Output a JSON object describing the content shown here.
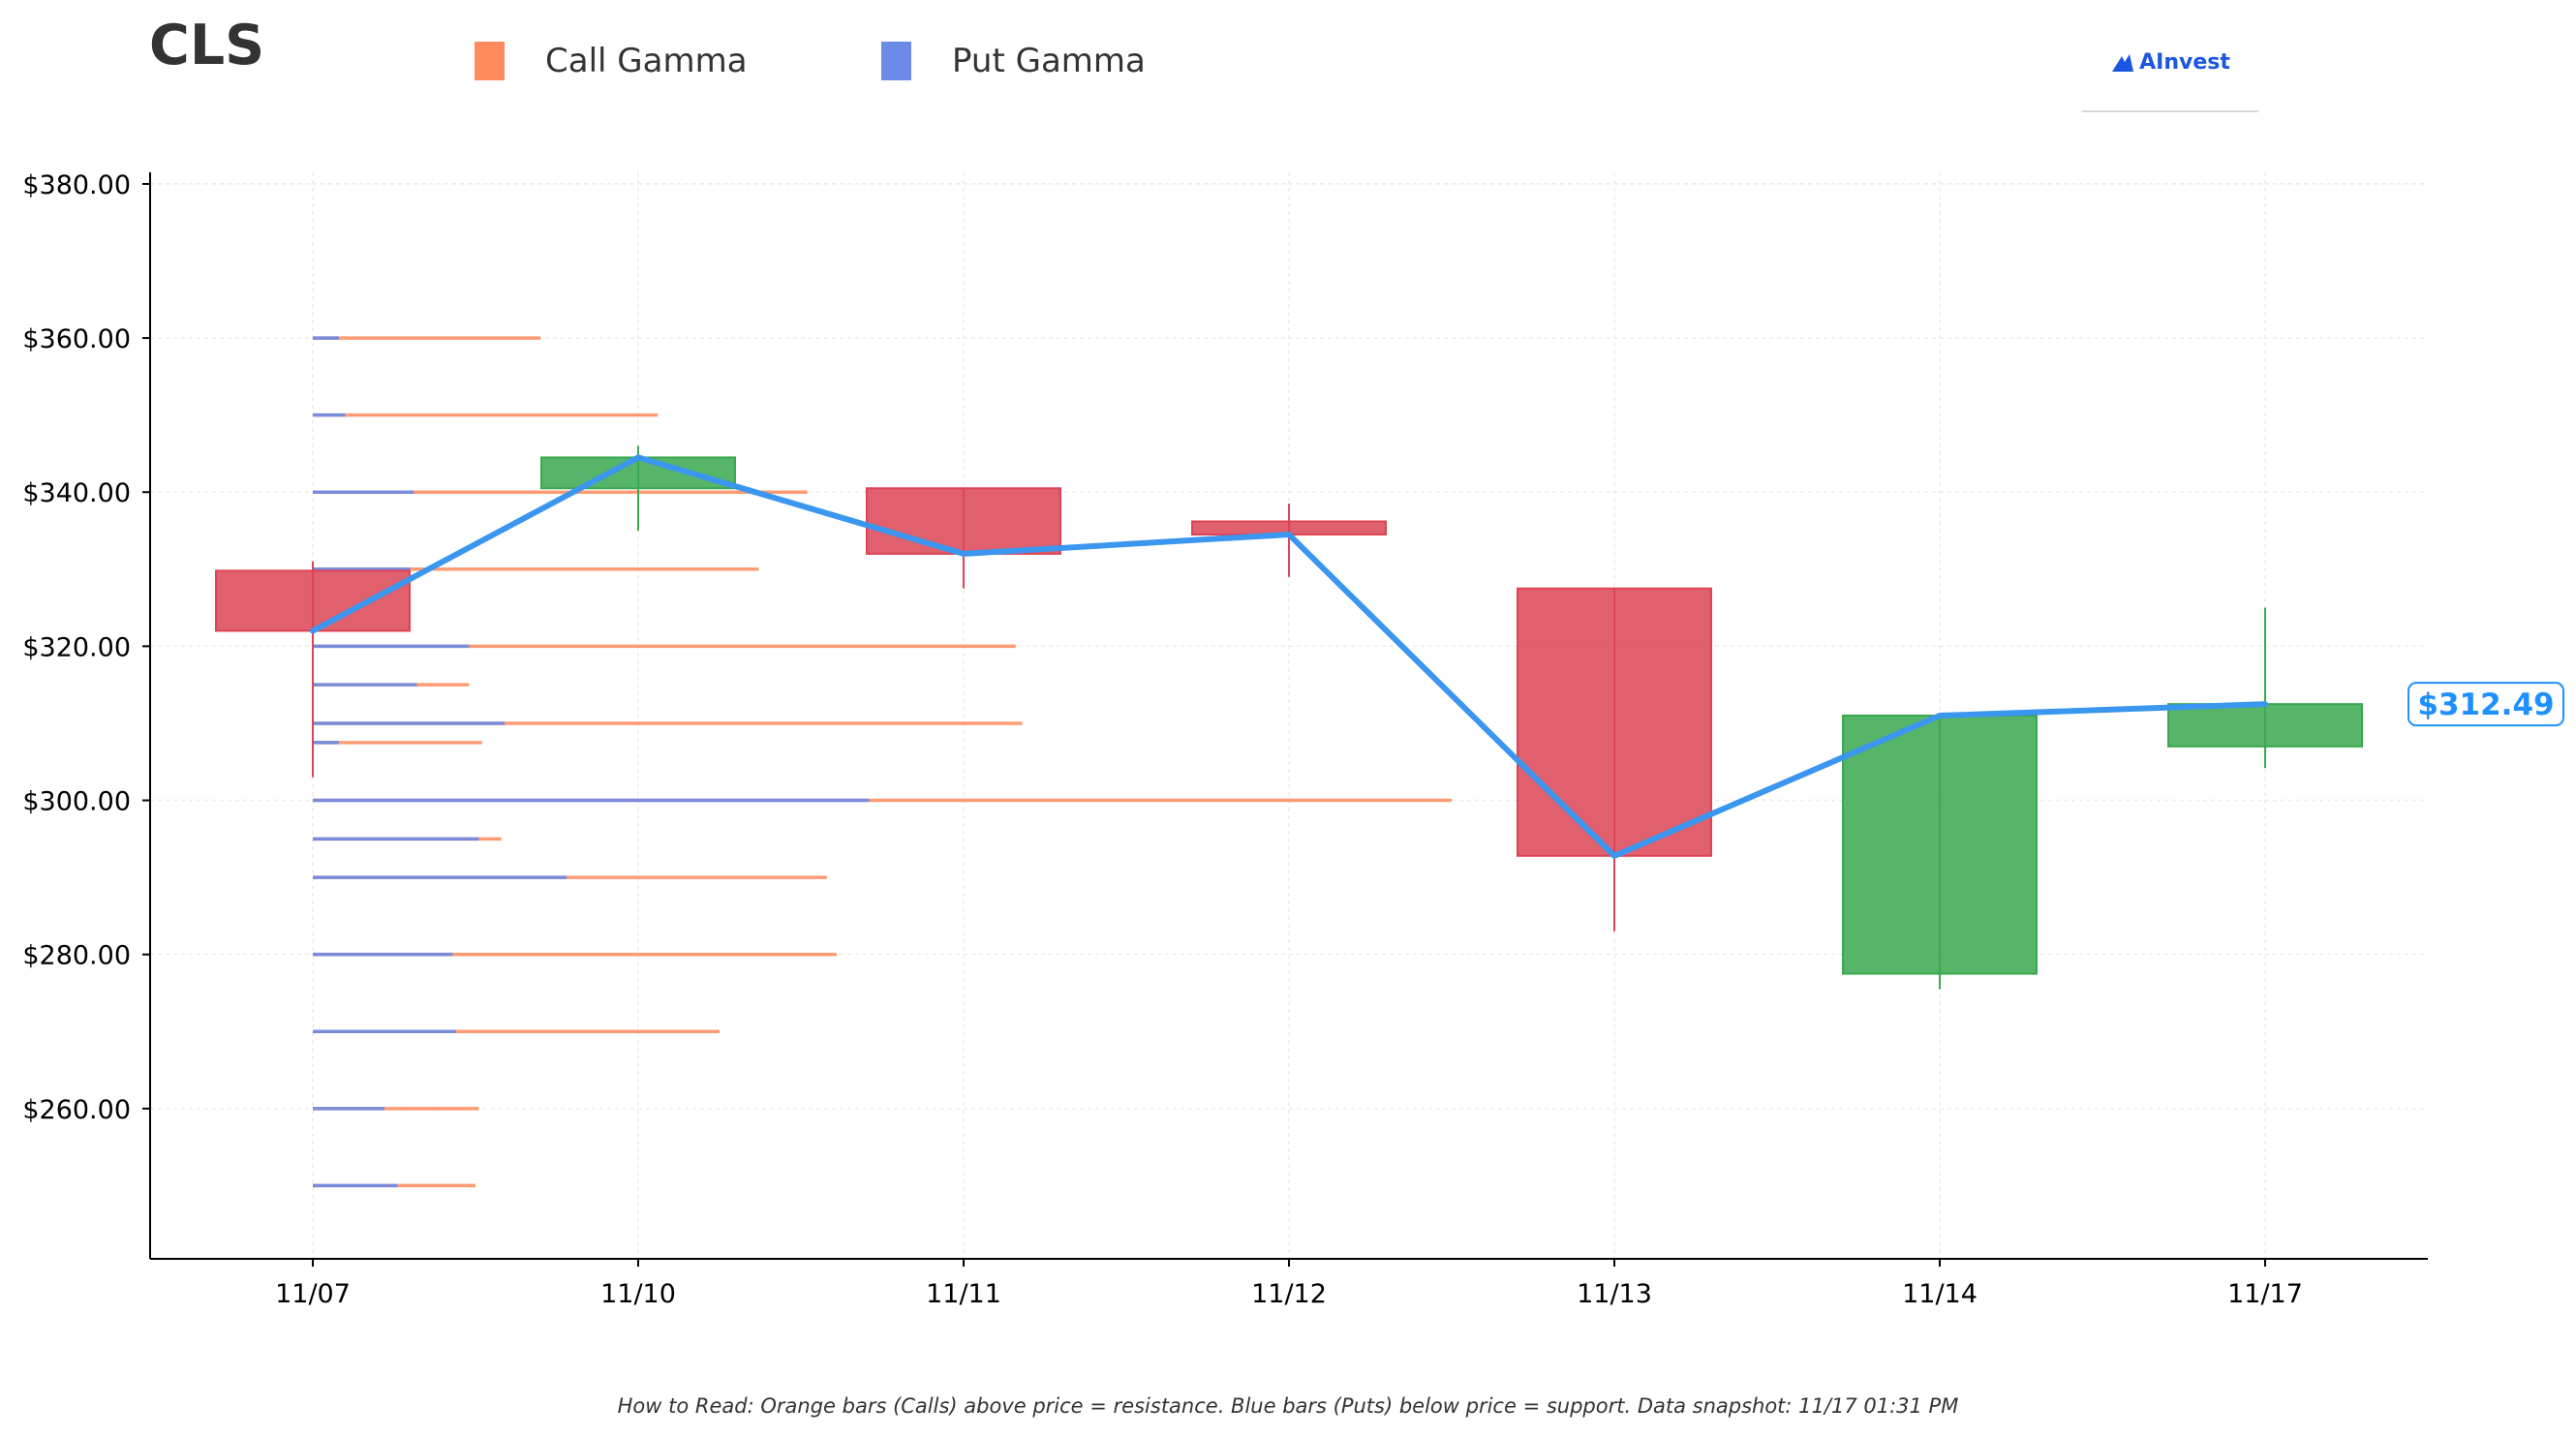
{
  "header": {
    "ticker": "CLS",
    "legend": [
      {
        "label": "Call Gamma",
        "color": "#ff8a5b"
      },
      {
        "label": "Put Gamma",
        "color": "#6c8ae8"
      }
    ],
    "brand": {
      "name": "AInvest",
      "icon": "ainvest-logo-icon"
    }
  },
  "footnote": "How to Read: Orange bars (Calls) above price = resistance. Blue bars (Puts) below price = support. Data snapshot: 11/17 01:31 PM",
  "chart_data": {
    "type": "candlestick",
    "title": "",
    "xlabel": "",
    "ylabel": "",
    "ylim": [
      240.5,
      381.5
    ],
    "grid": true,
    "y_ticks": [
      380,
      360,
      340,
      320,
      300,
      280,
      260
    ],
    "y_tick_labels": [
      "$380.00",
      "$360.00",
      "$340.00",
      "$320.00",
      "$300.00",
      "$280.00",
      "$260.00"
    ],
    "categories": [
      "11/07",
      "11/10",
      "11/11",
      "11/12",
      "11/13",
      "11/14",
      "11/17"
    ],
    "candles": [
      {
        "date": "11/07",
        "open": 329.8,
        "close": 322.0,
        "high": 331.0,
        "low": 303.0
      },
      {
        "date": "11/10",
        "open": 340.5,
        "close": 344.5,
        "high": 346.0,
        "low": 335.0
      },
      {
        "date": "11/11",
        "open": 340.5,
        "close": 332.0,
        "high": 340.5,
        "low": 327.5
      },
      {
        "date": "11/12",
        "open": 336.2,
        "close": 334.5,
        "high": 338.5,
        "low": 329.0
      },
      {
        "date": "11/13",
        "open": 327.5,
        "close": 292.8,
        "high": 327.5,
        "low": 283.0
      },
      {
        "date": "11/14",
        "open": 277.5,
        "close": 311.0,
        "high": 311.0,
        "low": 275.5
      },
      {
        "date": "11/17",
        "open": 307.0,
        "close": 312.49,
        "high": 325.0,
        "low": 304.2
      }
    ],
    "close_line": {
      "color": "#3a96ee",
      "values": [
        322.0,
        344.5,
        332.0,
        334.5,
        292.8,
        311.0,
        312.49
      ]
    },
    "current_price": {
      "value": 312.49,
      "label": "$312.49"
    },
    "gamma_levels": {
      "unit": "category-widths",
      "levels": [
        {
          "strike": 360,
          "put": 0.08,
          "call": 0.7
        },
        {
          "strike": 350,
          "put": 0.1,
          "call": 1.06
        },
        {
          "strike": 340,
          "put": 0.31,
          "call": 1.52
        },
        {
          "strike": 330,
          "put": 0.3,
          "call": 1.37
        },
        {
          "strike": 320,
          "put": 0.48,
          "call": 2.16
        },
        {
          "strike": 315,
          "put": 0.32,
          "call": 0.48
        },
        {
          "strike": 310,
          "put": 0.59,
          "call": 2.18
        },
        {
          "strike": 307.5,
          "put": 0.08,
          "call": 0.52
        },
        {
          "strike": 300,
          "put": 1.71,
          "call": 3.5
        },
        {
          "strike": 295,
          "put": 0.51,
          "call": 0.58
        },
        {
          "strike": 290,
          "put": 0.78,
          "call": 1.58
        },
        {
          "strike": 280,
          "put": 0.43,
          "call": 1.61
        },
        {
          "strike": 270,
          "put": 0.44,
          "call": 1.25
        },
        {
          "strike": 260,
          "put": 0.22,
          "call": 0.51
        },
        {
          "strike": 250,
          "put": 0.26,
          "call": 0.5
        }
      ]
    },
    "colors": {
      "up": "#3aa84f",
      "down": "#dc4455",
      "call": "#ff8a5b",
      "put": "#6c8ae8"
    }
  }
}
